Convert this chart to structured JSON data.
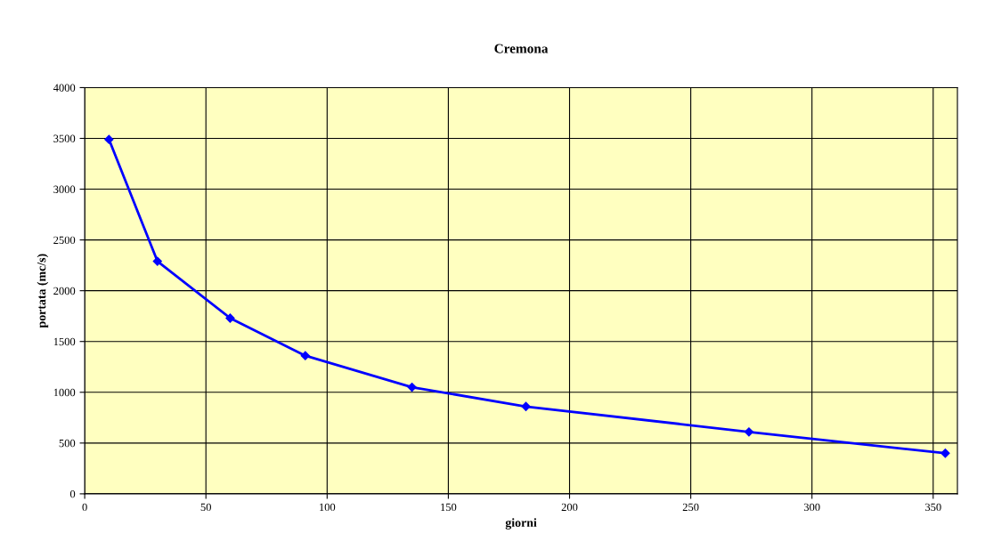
{
  "chart_data": {
    "type": "line",
    "title": "Cremona",
    "xlabel": "giorni",
    "ylabel": "portata (mc/s)",
    "x": [
      10,
      30,
      60,
      91,
      135,
      182,
      274,
      355
    ],
    "series": [
      {
        "color": "#0000ff",
        "values": [
          3490,
          2290,
          1730,
          1360,
          1050,
          860,
          610,
          400
        ]
      }
    ],
    "xlim": [
      0,
      360
    ],
    "xticks": [
      0,
      50,
      100,
      150,
      200,
      250,
      300,
      350
    ],
    "ylim": [
      0,
      4000
    ],
    "yticks": [
      0,
      500,
      1000,
      1500,
      2000,
      2500,
      3000,
      3500,
      4000
    ],
    "grid": true,
    "legend": false,
    "marker": "diamond",
    "line_style": "solid"
  }
}
